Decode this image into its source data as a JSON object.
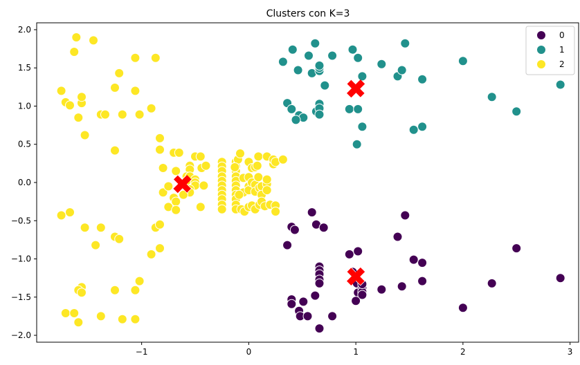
{
  "chart_data": {
    "type": "scatter",
    "title": "Clusters con K=3",
    "xlabel": "",
    "ylabel": "",
    "xlim": [
      -1.98,
      3.08
    ],
    "ylim": [
      -2.09,
      2.09
    ],
    "xticks": [
      -1,
      0,
      1,
      2,
      3
    ],
    "yticks": [
      -2.0,
      -1.5,
      -1.0,
      -0.5,
      0.0,
      0.5,
      1.0,
      1.5,
      2.0
    ],
    "xtick_labels": [
      "−1",
      "0",
      "1",
      "2",
      "3"
    ],
    "ytick_labels": [
      "−2.0",
      "−1.5",
      "−1.0",
      "−0.5",
      "0.0",
      "0.5",
      "1.0",
      "1.5",
      "2.0"
    ],
    "grid": false,
    "legend_position": "top-right",
    "colors": {
      "0": "#440154",
      "1": "#21918c",
      "2": "#fde725",
      "centroid": "#ff0000"
    },
    "series": [
      {
        "name": "0",
        "color": "#440154",
        "points": [
          [
            0.59,
            -0.39
          ],
          [
            0.63,
            -0.55
          ],
          [
            0.7,
            -0.59
          ],
          [
            0.4,
            -0.58
          ],
          [
            0.43,
            -0.62
          ],
          [
            0.36,
            -0.82
          ],
          [
            0.94,
            -0.94
          ],
          [
            1.02,
            -0.9
          ],
          [
            0.66,
            -1.1
          ],
          [
            0.66,
            -1.15
          ],
          [
            0.66,
            -1.2
          ],
          [
            0.66,
            -1.27
          ],
          [
            0.66,
            -1.32
          ],
          [
            0.97,
            -1.17
          ],
          [
            1.01,
            -1.32
          ],
          [
            1.02,
            -1.44
          ],
          [
            1.06,
            -1.38
          ],
          [
            1.06,
            -1.43
          ],
          [
            1.06,
            -1.33
          ],
          [
            1.06,
            -1.47
          ],
          [
            1.0,
            -1.55
          ],
          [
            0.4,
            -1.53
          ],
          [
            0.4,
            -1.59
          ],
          [
            0.51,
            -1.56
          ],
          [
            0.62,
            -1.48
          ],
          [
            0.47,
            -1.68
          ],
          [
            0.48,
            -1.75
          ],
          [
            0.55,
            -1.75
          ],
          [
            0.78,
            -1.75
          ],
          [
            0.66,
            -1.91
          ],
          [
            1.39,
            -0.71
          ],
          [
            1.46,
            -0.43
          ],
          [
            1.54,
            -1.01
          ],
          [
            1.62,
            -1.05
          ],
          [
            1.62,
            -1.29
          ],
          [
            1.43,
            -1.36
          ],
          [
            1.24,
            -1.4
          ],
          [
            2.0,
            -1.64
          ],
          [
            2.27,
            -1.32
          ],
          [
            2.5,
            -0.86
          ],
          [
            2.91,
            -1.25
          ]
        ]
      },
      {
        "name": "1",
        "color": "#21918c",
        "points": [
          [
            0.32,
            1.58
          ],
          [
            0.41,
            1.74
          ],
          [
            0.62,
            1.82
          ],
          [
            0.46,
            1.47
          ],
          [
            0.56,
            1.66
          ],
          [
            0.59,
            1.43
          ],
          [
            0.78,
            1.66
          ],
          [
            0.66,
            1.46
          ],
          [
            0.66,
            1.5
          ],
          [
            0.66,
            1.53
          ],
          [
            0.71,
            1.27
          ],
          [
            0.97,
            1.74
          ],
          [
            1.02,
            1.63
          ],
          [
            1.06,
            1.39
          ],
          [
            1.24,
            1.55
          ],
          [
            1.39,
            1.39
          ],
          [
            1.43,
            1.47
          ],
          [
            1.46,
            1.82
          ],
          [
            1.62,
            1.35
          ],
          [
            0.36,
            1.04
          ],
          [
            0.4,
            0.96
          ],
          [
            0.47,
            0.88
          ],
          [
            0.51,
            0.85
          ],
          [
            0.44,
            0.82
          ],
          [
            0.63,
            0.93
          ],
          [
            0.66,
            1.03
          ],
          [
            0.66,
            0.97
          ],
          [
            0.66,
            0.89
          ],
          [
            0.94,
            0.96
          ],
          [
            1.02,
            0.96
          ],
          [
            1.06,
            0.73
          ],
          [
            1.01,
            0.5
          ],
          [
            1.54,
            0.69
          ],
          [
            1.62,
            0.73
          ],
          [
            2.0,
            1.59
          ],
          [
            2.27,
            1.12
          ],
          [
            2.5,
            0.93
          ],
          [
            2.91,
            1.28
          ]
        ]
      },
      {
        "name": "2",
        "color": "#fde725",
        "points": [
          [
            -1.61,
            1.9
          ],
          [
            -1.45,
            1.86
          ],
          [
            -1.63,
            1.71
          ],
          [
            -1.06,
            1.63
          ],
          [
            -0.87,
            1.63
          ],
          [
            -1.21,
            1.43
          ],
          [
            -1.75,
            1.2
          ],
          [
            -1.25,
            1.24
          ],
          [
            -1.06,
            1.2
          ],
          [
            -1.71,
            1.05
          ],
          [
            -1.67,
            1.01
          ],
          [
            -1.56,
            1.04
          ],
          [
            -1.56,
            1.12
          ],
          [
            -1.38,
            0.89
          ],
          [
            -1.34,
            0.89
          ],
          [
            -1.18,
            0.89
          ],
          [
            -1.02,
            0.89
          ],
          [
            -0.91,
            0.97
          ],
          [
            -1.59,
            0.85
          ],
          [
            -1.53,
            0.62
          ],
          [
            -1.25,
            0.42
          ],
          [
            -0.83,
            0.58
          ],
          [
            -0.83,
            0.43
          ],
          [
            -1.75,
            -0.43
          ],
          [
            -1.67,
            -0.39
          ],
          [
            -1.53,
            -0.59
          ],
          [
            -1.38,
            -0.59
          ],
          [
            -1.25,
            -0.71
          ],
          [
            -1.21,
            -0.74
          ],
          [
            -1.43,
            -0.82
          ],
          [
            -0.87,
            -0.59
          ],
          [
            -0.83,
            -0.55
          ],
          [
            -0.83,
            -0.86
          ],
          [
            -0.91,
            -0.94
          ],
          [
            -1.56,
            -1.37
          ],
          [
            -1.59,
            -1.41
          ],
          [
            -1.56,
            -1.44
          ],
          [
            -1.25,
            -1.41
          ],
          [
            -1.06,
            -1.41
          ],
          [
            -1.02,
            -1.29
          ],
          [
            -1.71,
            -1.71
          ],
          [
            -1.63,
            -1.71
          ],
          [
            -1.59,
            -1.83
          ],
          [
            -1.38,
            -1.75
          ],
          [
            -1.18,
            -1.79
          ],
          [
            -1.06,
            -1.79
          ],
          [
            -0.7,
            0.39
          ],
          [
            -0.65,
            0.39
          ],
          [
            -0.68,
            0.15
          ],
          [
            -0.8,
            0.19
          ],
          [
            -0.55,
            0.22
          ],
          [
            -0.55,
            0.17
          ],
          [
            -0.5,
            0.34
          ],
          [
            -0.45,
            0.34
          ],
          [
            -0.44,
            0.19
          ],
          [
            -0.4,
            0.22
          ],
          [
            -0.58,
            0.08
          ],
          [
            -0.58,
            0.02
          ],
          [
            -0.55,
            0.08
          ],
          [
            -0.5,
            0.04
          ],
          [
            -0.5,
            0.0
          ],
          [
            -0.5,
            -0.04
          ],
          [
            -0.42,
            -0.04
          ],
          [
            -0.8,
            -0.13
          ],
          [
            -0.75,
            -0.05
          ],
          [
            -0.55,
            -0.09
          ],
          [
            -0.55,
            -0.13
          ],
          [
            -0.61,
            -0.16
          ],
          [
            -0.7,
            -0.2
          ],
          [
            -0.68,
            -0.25
          ],
          [
            -0.75,
            -0.32
          ],
          [
            -0.68,
            -0.36
          ],
          [
            -0.45,
            -0.32
          ],
          [
            -0.25,
            0.27
          ],
          [
            -0.25,
            0.21
          ],
          [
            -0.25,
            0.15
          ],
          [
            -0.25,
            0.08
          ],
          [
            -0.25,
            0.02
          ],
          [
            -0.25,
            -0.04
          ],
          [
            -0.25,
            -0.1
          ],
          [
            -0.25,
            -0.16
          ],
          [
            -0.25,
            -0.22
          ],
          [
            -0.25,
            -0.29
          ],
          [
            -0.25,
            -0.35
          ],
          [
            -0.12,
            0.27
          ],
          [
            -0.12,
            0.21
          ],
          [
            -0.12,
            0.15
          ],
          [
            -0.12,
            0.08
          ],
          [
            -0.12,
            0.02
          ],
          [
            -0.12,
            -0.04
          ],
          [
            -0.12,
            -0.1
          ],
          [
            -0.12,
            -0.16
          ],
          [
            -0.12,
            -0.22
          ],
          [
            -0.12,
            -0.29
          ],
          [
            -0.12,
            -0.35
          ],
          [
            -0.1,
            0.3
          ],
          [
            -0.08,
            0.38
          ],
          [
            -0.13,
            0.2
          ],
          [
            0.0,
            0.27
          ],
          [
            0.03,
            0.19
          ],
          [
            0.06,
            0.2
          ],
          [
            0.09,
            0.34
          ],
          [
            0.08,
            0.22
          ],
          [
            -0.05,
            0.06
          ],
          [
            -0.05,
            -0.13
          ],
          [
            0.0,
            0.07
          ],
          [
            0.0,
            -0.05
          ],
          [
            0.0,
            -0.1
          ],
          [
            0.03,
            0.0
          ],
          [
            0.06,
            -0.03
          ],
          [
            0.06,
            -0.12
          ],
          [
            0.09,
            0.07
          ],
          [
            0.1,
            -0.07
          ],
          [
            0.12,
            -0.05
          ],
          [
            0.12,
            -0.16
          ],
          [
            0.17,
            -0.02
          ],
          [
            0.17,
            -0.1
          ],
          [
            -0.09,
            -0.16
          ],
          [
            -0.07,
            -0.35
          ],
          [
            -0.04,
            -0.38
          ],
          [
            0.0,
            -0.32
          ],
          [
            0.03,
            -0.3
          ],
          [
            0.06,
            -0.35
          ],
          [
            0.1,
            -0.29
          ],
          [
            0.12,
            -0.25
          ],
          [
            0.15,
            -0.31
          ],
          [
            0.2,
            -0.29
          ],
          [
            0.17,
            0.34
          ],
          [
            0.23,
            0.24
          ],
          [
            0.23,
            0.3
          ],
          [
            0.25,
            0.27
          ],
          [
            0.32,
            0.3
          ],
          [
            0.25,
            -0.3
          ],
          [
            0.25,
            -0.38
          ],
          [
            0.17,
            0.04
          ]
        ]
      }
    ],
    "centroids": [
      [
        -0.62,
        -0.02
      ],
      [
        1.0,
        1.23
      ],
      [
        1.0,
        -1.23
      ]
    ]
  }
}
